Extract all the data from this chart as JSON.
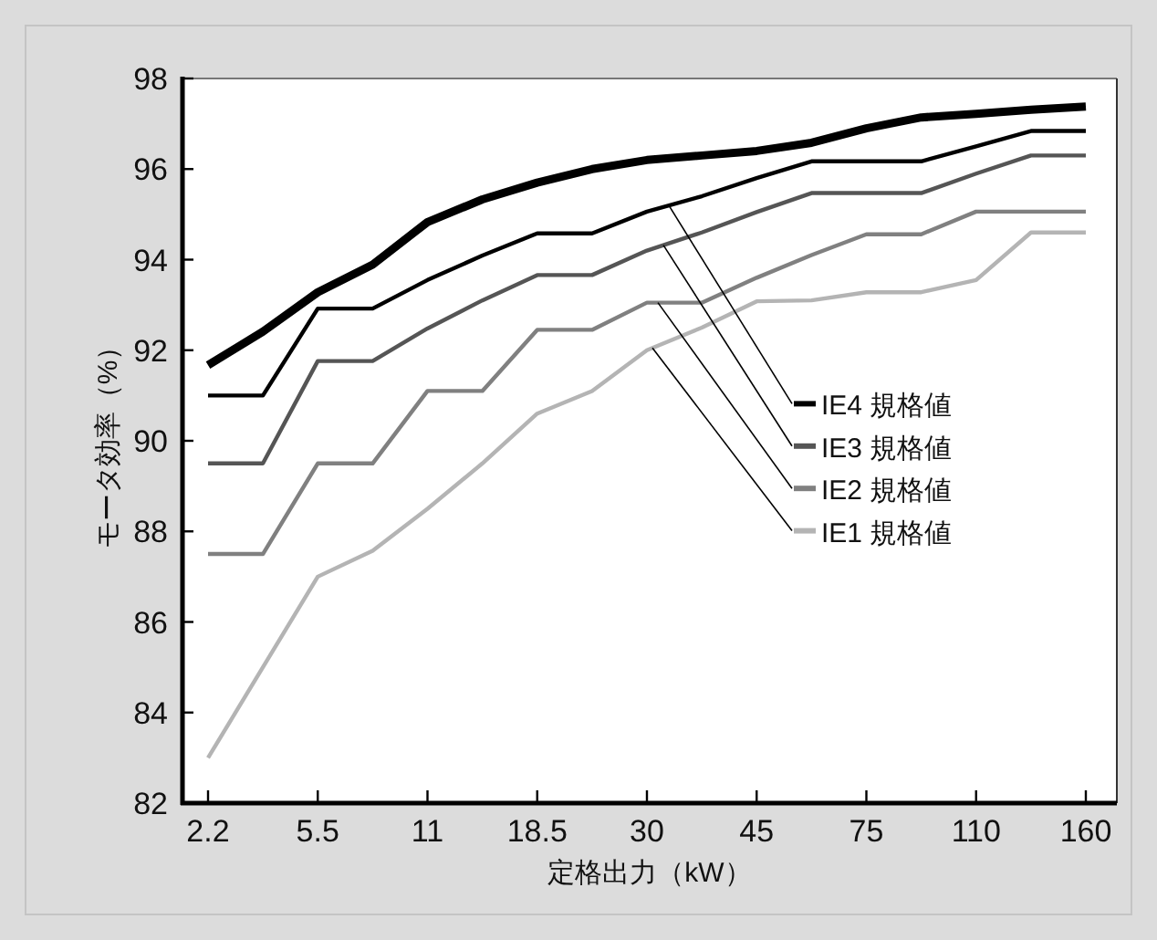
{
  "chart_data": {
    "type": "line",
    "xlabel": "定格出力（kW）",
    "ylabel": "モータ効率（%）",
    "categories": [
      "2.2",
      null,
      "5.5",
      null,
      "11",
      null,
      "18.5",
      null,
      "30",
      null,
      "45",
      null,
      "75",
      null,
      "110",
      null,
      "160"
    ],
    "ylim": [
      82,
      98
    ],
    "yticks": [
      82,
      84,
      86,
      88,
      90,
      92,
      94,
      96,
      98
    ],
    "grid": false,
    "legend": "right",
    "marker": "none",
    "line_style": "solid",
    "series": [
      {
        "color": "#000000",
        "values": [
          91.67,
          92.41,
          93.28,
          93.89,
          94.83,
          95.33,
          95.7,
          96.0,
          96.2,
          96.3,
          96.4,
          96.58,
          96.9,
          97.14,
          97.22,
          97.31,
          97.38
        ]
      },
      {
        "name": "IE4 規格値",
        "color": "#000000",
        "values": [
          91.0,
          91.0,
          92.92,
          92.92,
          93.55,
          94.09,
          94.58,
          94.58,
          95.06,
          95.4,
          95.8,
          96.17,
          96.17,
          96.17,
          96.5,
          96.84,
          96.84
        ]
      },
      {
        "name": "IE3 規格値",
        "color": "#555555",
        "values": [
          89.5,
          89.5,
          91.76,
          91.76,
          92.48,
          93.1,
          93.66,
          93.66,
          94.2,
          94.6,
          95.05,
          95.47,
          95.47,
          95.47,
          95.9,
          96.3,
          96.3
        ]
      },
      {
        "name": "IE2 規格値",
        "color": "#808080",
        "values": [
          87.5,
          87.5,
          89.5,
          89.5,
          91.1,
          91.1,
          92.45,
          92.45,
          93.05,
          93.05,
          93.6,
          94.1,
          94.56,
          94.56,
          95.06,
          95.06,
          95.06
        ]
      },
      {
        "name": "IE1 規格値",
        "color": "#b4b4b4",
        "values": [
          83.0,
          85.0,
          87.0,
          87.57,
          88.5,
          89.5,
          90.6,
          91.1,
          92.0,
          92.5,
          93.08,
          93.1,
          93.28,
          93.28,
          93.55,
          94.6,
          94.6
        ]
      }
    ]
  }
}
